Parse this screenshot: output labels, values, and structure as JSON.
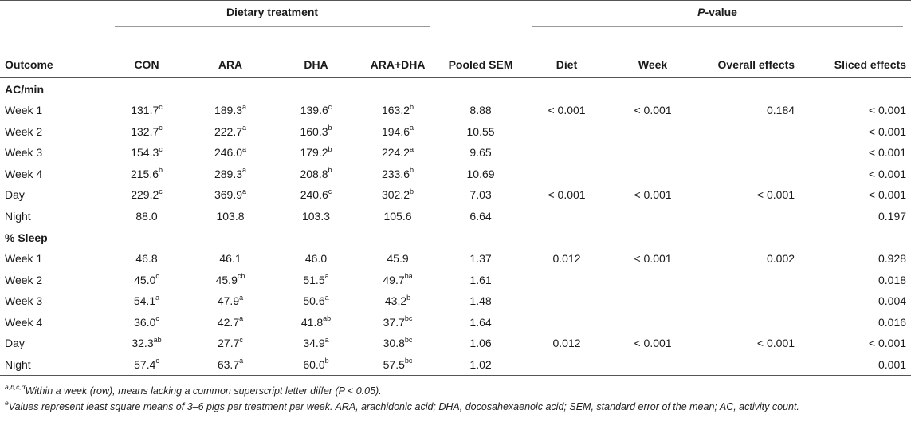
{
  "table": {
    "group_headers": {
      "dietary": "Dietary treatment",
      "pvalue_prefix": "P",
      "pvalue_suffix": "-value"
    },
    "columns": {
      "outcome": "Outcome",
      "con": "CON",
      "ara": "ARA",
      "dha": "DHA",
      "aradha": "ARA+DHA",
      "sem": "Pooled SEM",
      "diet": "Diet",
      "week": "Week",
      "overall": "Overall effects",
      "sliced": "Sliced effects"
    },
    "sections": [
      {
        "title": "AC/min",
        "rows": [
          {
            "label": "Week 1",
            "con": "131.7",
            "con_sup": "c",
            "ara": "189.3",
            "ara_sup": "a",
            "dha": "139.6",
            "dha_sup": "c",
            "aradha": "163.2",
            "aradha_sup": "b",
            "sem": "8.88",
            "diet": "< 0.001",
            "week": "< 0.001",
            "overall": "0.184",
            "sliced": "< 0.001"
          },
          {
            "label": "Week 2",
            "con": "132.7",
            "con_sup": "c",
            "ara": "222.7",
            "ara_sup": "a",
            "dha": "160.3",
            "dha_sup": "b",
            "aradha": "194.6",
            "aradha_sup": "a",
            "sem": "10.55",
            "diet": "",
            "week": "",
            "overall": "",
            "sliced": "< 0.001"
          },
          {
            "label": "Week 3",
            "con": "154.3",
            "con_sup": "c",
            "ara": "246.0",
            "ara_sup": "a",
            "dha": "179.2",
            "dha_sup": "b",
            "aradha": "224.2",
            "aradha_sup": "a",
            "sem": "9.65",
            "diet": "",
            "week": "",
            "overall": "",
            "sliced": "< 0.001"
          },
          {
            "label": "Week 4",
            "con": "215.6",
            "con_sup": "b",
            "ara": "289.3",
            "ara_sup": "a",
            "dha": "208.8",
            "dha_sup": "b",
            "aradha": "233.6",
            "aradha_sup": "b",
            "sem": "10.69",
            "diet": "",
            "week": "",
            "overall": "",
            "sliced": "< 0.001"
          },
          {
            "label": "Day",
            "con": "229.2",
            "con_sup": "c",
            "ara": "369.9",
            "ara_sup": "a",
            "dha": "240.6",
            "dha_sup": "c",
            "aradha": "302.2",
            "aradha_sup": "b",
            "sem": "7.03",
            "diet": "< 0.001",
            "week": "< 0.001",
            "overall": "< 0.001",
            "sliced": "< 0.001"
          },
          {
            "label": "Night",
            "con": "88.0",
            "con_sup": "",
            "ara": "103.8",
            "ara_sup": "",
            "dha": "103.3",
            "dha_sup": "",
            "aradha": "105.6",
            "aradha_sup": "",
            "sem": "6.64",
            "diet": "",
            "week": "",
            "overall": "",
            "sliced": "0.197"
          }
        ]
      },
      {
        "title": "% Sleep",
        "rows": [
          {
            "label": "Week 1",
            "con": "46.8",
            "con_sup": "",
            "ara": "46.1",
            "ara_sup": "",
            "dha": "46.0",
            "dha_sup": "",
            "aradha": "45.9",
            "aradha_sup": "",
            "sem": "1.37",
            "diet": "0.012",
            "week": "< 0.001",
            "overall": "0.002",
            "sliced": "0.928"
          },
          {
            "label": "Week 2",
            "con": "45.0",
            "con_sup": "c",
            "ara": "45.9",
            "ara_sup": "cb",
            "dha": "51.5",
            "dha_sup": "a",
            "aradha": "49.7",
            "aradha_sup": "ba",
            "sem": "1.61",
            "diet": "",
            "week": "",
            "overall": "",
            "sliced": "0.018"
          },
          {
            "label": "Week 3",
            "con": "54.1",
            "con_sup": "a",
            "ara": "47.9",
            "ara_sup": "a",
            "dha": "50.6",
            "dha_sup": "a",
            "aradha": "43.2",
            "aradha_sup": "b",
            "sem": "1.48",
            "diet": "",
            "week": "",
            "overall": "",
            "sliced": "0.004"
          },
          {
            "label": "Week 4",
            "con": "36.0",
            "con_sup": "c",
            "ara": "42.7",
            "ara_sup": "a",
            "dha": "41.8",
            "dha_sup": "ab",
            "aradha": "37.7",
            "aradha_sup": "bc",
            "sem": "1.64",
            "diet": "",
            "week": "",
            "overall": "",
            "sliced": "0.016"
          },
          {
            "label": "Day",
            "con": "32.3",
            "con_sup": "ab",
            "ara": "27.7",
            "ara_sup": "c",
            "dha": "34.9",
            "dha_sup": "a",
            "aradha": "30.8",
            "aradha_sup": "bc",
            "sem": "1.06",
            "diet": "0.012",
            "week": "< 0.001",
            "overall": "< 0.001",
            "sliced": "< 0.001"
          },
          {
            "label": "Night",
            "con": "57.4",
            "con_sup": "c",
            "ara": "63.7",
            "ara_sup": "a",
            "dha": "60.0",
            "dha_sup": "b",
            "aradha": "57.5",
            "aradha_sup": "bc",
            "sem": "1.02",
            "diet": "",
            "week": "",
            "overall": "",
            "sliced": "0.001"
          }
        ]
      }
    ]
  },
  "footnotes": {
    "note1_marker": "a,b,c,d",
    "note1_text": "Within a week (row), means lacking a common superscript letter differ (P < 0.05).",
    "note2_marker": "e",
    "note2_text": "Values represent least square means of 3–6 pigs per treatment per week. ARA, arachidonic acid; DHA, docosahexaenoic acid; SEM, standard error of the mean; AC, activity count."
  }
}
